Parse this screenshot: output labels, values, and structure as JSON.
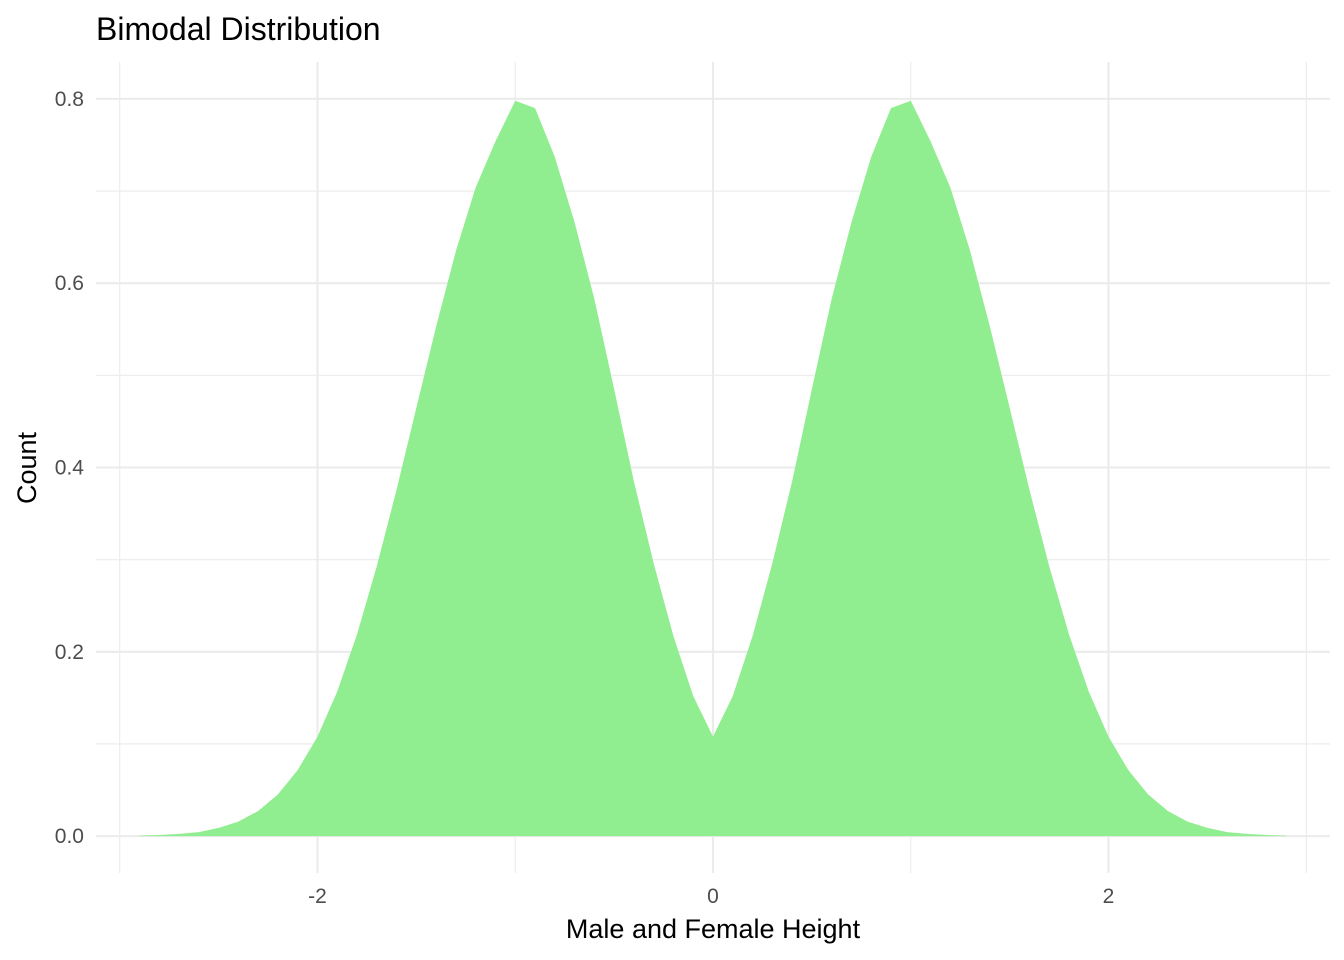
{
  "chart_data": {
    "type": "area",
    "title": "Bimodal Distribution",
    "xlabel": "Male and Female Height",
    "ylabel": "Count",
    "xlim": [
      -3.12,
      3.12
    ],
    "ylim": [
      -0.04,
      0.84
    ],
    "x_ticks": [
      -2,
      0,
      2
    ],
    "x_tick_labels": [
      "-2",
      "0",
      "2"
    ],
    "y_ticks": [
      0.0,
      0.2,
      0.4,
      0.6,
      0.8
    ],
    "y_tick_labels": [
      "0.0",
      "0.2",
      "0.4",
      "0.6",
      "0.8"
    ],
    "grid": true,
    "fill_color": "#90EE90",
    "series": [
      {
        "x": [
          -2.9,
          -2.8,
          -2.7,
          -2.6,
          -2.5,
          -2.4,
          -2.3,
          -2.2,
          -2.1,
          -2.0,
          -1.9,
          -1.8,
          -1.7,
          -1.6,
          -1.5,
          -1.4,
          -1.3,
          -1.2,
          -1.1,
          -1.0,
          -0.9,
          -0.8,
          -0.7,
          -0.6,
          -0.5,
          -0.4,
          -0.3,
          -0.2,
          -0.1,
          0.0,
          0.1,
          0.2,
          0.3,
          0.4,
          0.5,
          0.6,
          0.7,
          0.8,
          0.9,
          1.0,
          1.1,
          1.2,
          1.3,
          1.4,
          1.5,
          1.6,
          1.7,
          1.8,
          1.9,
          2.0,
          2.1,
          2.2,
          2.3,
          2.4,
          2.5,
          2.6,
          2.7,
          2.8,
          2.9
        ],
        "values": [
          0.0006,
          0.0012,
          0.0024,
          0.0044,
          0.0089,
          0.0158,
          0.0273,
          0.0453,
          0.0717,
          0.108,
          0.157,
          0.219,
          0.293,
          0.376,
          0.465,
          0.553,
          0.635,
          0.704,
          0.754,
          0.798,
          0.79,
          0.737,
          0.666,
          0.583,
          0.485,
          0.385,
          0.296,
          0.217,
          0.152,
          0.108,
          0.152,
          0.217,
          0.296,
          0.385,
          0.485,
          0.583,
          0.666,
          0.737,
          0.79,
          0.798,
          0.754,
          0.704,
          0.635,
          0.553,
          0.465,
          0.376,
          0.293,
          0.219,
          0.157,
          0.108,
          0.0717,
          0.0453,
          0.0273,
          0.0158,
          0.0089,
          0.0044,
          0.0024,
          0.0012,
          0.0006
        ]
      }
    ]
  }
}
